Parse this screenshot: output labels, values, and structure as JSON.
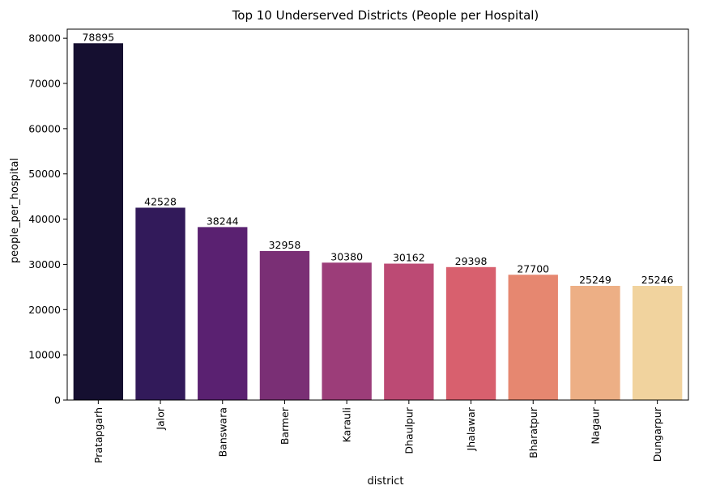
{
  "chart_data": {
    "type": "bar",
    "title": "Top 10 Underserved Districts (People per Hospital)",
    "xlabel": "district",
    "ylabel": "people_per_hospital",
    "categories": [
      "Pratapgarh",
      "Jalor",
      "Banswara",
      "Barmer",
      "Karauli",
      "Dhaulpur",
      "Jhalawar",
      "Bharatpur",
      "Nagaur",
      "Dungarpur"
    ],
    "values": [
      78895,
      42528,
      38244,
      32958,
      30380,
      30162,
      29398,
      27700,
      25249,
      25246
    ],
    "data_labels": [
      "78895",
      "42528",
      "38244",
      "32958",
      "30380",
      "30162",
      "29398",
      "27700",
      "25249",
      "25246"
    ],
    "colors": [
      "#150f30",
      "#321a5a",
      "#5a2171",
      "#7a2f75",
      "#9c3d79",
      "#bc4a74",
      "#d8606e",
      "#e68770",
      "#edaf85",
      "#f1d39e"
    ],
    "ylim": [
      0,
      82000
    ],
    "yticks": [
      0,
      10000,
      20000,
      30000,
      40000,
      50000,
      60000,
      70000,
      80000
    ],
    "ytick_labels": [
      "0",
      "10000",
      "20000",
      "30000",
      "40000",
      "50000",
      "60000",
      "70000",
      "80000"
    ],
    "grid": false,
    "legend": "none"
  }
}
